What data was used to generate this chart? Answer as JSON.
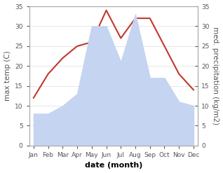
{
  "months": [
    "Jan",
    "Feb",
    "Mar",
    "Apr",
    "May",
    "Jun",
    "Jul",
    "Aug",
    "Sep",
    "Oct",
    "Nov",
    "Dec"
  ],
  "temp": [
    12,
    18,
    22,
    25,
    26,
    34,
    27,
    32,
    32,
    25,
    18,
    14
  ],
  "precip": [
    8,
    8,
    10,
    13,
    30,
    30,
    21,
    33,
    17,
    17,
    11,
    10
  ],
  "temp_color": "#c0392b",
  "precip_color": "#c5d4f0",
  "ylim_left": [
    0,
    35
  ],
  "ylim_right": [
    0,
    35
  ],
  "xlabel": "date (month)",
  "ylabel_left": "max temp (C)",
  "ylabel_right": "med. precipitation (kg/m2)",
  "bg_color": "#ffffff",
  "plot_bg": "#ffffff",
  "temp_linewidth": 1.5,
  "spine_color": "#aaaaaa",
  "tick_color": "#555555",
  "label_fontsize": 7.5,
  "tick_fontsize": 6.5,
  "xlabel_fontsize": 8.0
}
